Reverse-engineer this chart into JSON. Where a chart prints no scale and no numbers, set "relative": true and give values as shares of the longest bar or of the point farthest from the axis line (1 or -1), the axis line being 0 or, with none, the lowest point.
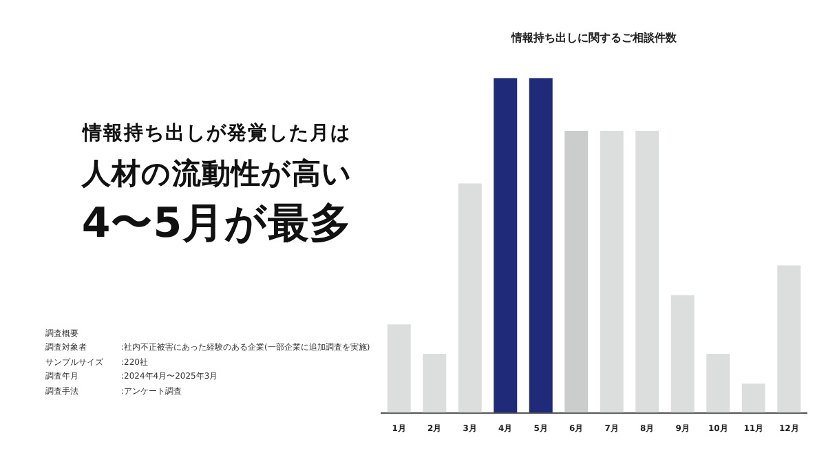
{
  "chart_data": {
    "type": "bar",
    "title": "情報持ち出しに関するご相談件数",
    "categories": [
      "1月",
      "2月",
      "3月",
      "4月",
      "5月",
      "6月",
      "7月",
      "8月",
      "9月",
      "10月",
      "11月",
      "12月"
    ],
    "values": [
      0.264,
      0.176,
      0.685,
      1,
      1,
      0.842,
      0.842,
      0.842,
      0.351,
      0.176,
      0.087,
      0.44
    ],
    "colors": [
      "#dcdddd",
      "#dcdddd",
      "#dcdddd",
      "#1f2a78",
      "#1f2a78",
      "#cbcccc",
      "#dcdddd",
      "#dcdddd",
      "#dcdddd",
      "#dcdddd",
      "#dcdddd",
      "#dcdddd"
    ],
    "relative": true,
    "grid": false,
    "legend": false,
    "annotations": [
      "情報持ち出しが発覚した月は",
      "人材の流動性が高い",
      "4〜5月が最多",
      "調査概要",
      "調査対象者 :社内不正被害にあった経験のある企業(一部企業に追加調査を実施)",
      "サンプルサイズ :220社",
      "調査年月 :2024年4月〜2025年3月",
      "調査手法 :アンケート調査"
    ]
  }
}
